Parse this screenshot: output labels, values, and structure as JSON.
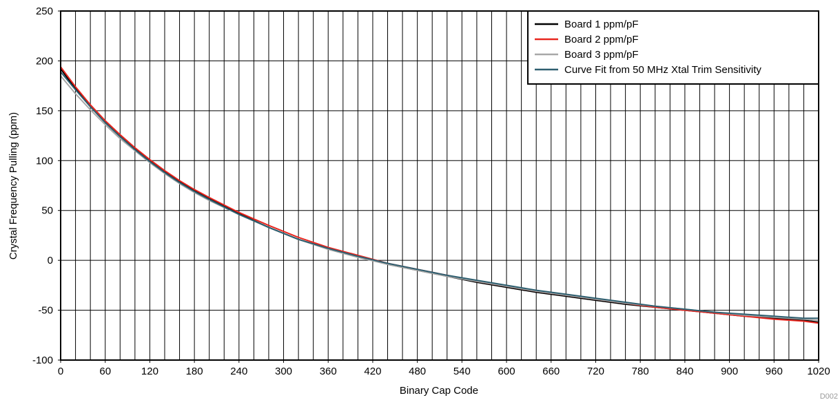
{
  "chart_data": {
    "type": "line",
    "title": "",
    "xlabel": "Binary Cap Code",
    "ylabel": "Crystal Frequency Pulling (ppm)",
    "xlim": [
      0,
      1020
    ],
    "ylim": [
      -100,
      250
    ],
    "xticks": [
      0,
      60,
      120,
      180,
      240,
      300,
      360,
      420,
      480,
      540,
      600,
      660,
      720,
      780,
      840,
      900,
      960,
      1020
    ],
    "yticks": [
      -100,
      -50,
      0,
      50,
      100,
      150,
      200,
      250
    ],
    "vertical_grid_step": 20,
    "grid": true,
    "legend_position": "top-right",
    "x": [
      0,
      20,
      40,
      60,
      80,
      100,
      120,
      140,
      160,
      180,
      200,
      240,
      280,
      320,
      360,
      400,
      440,
      480,
      520,
      560,
      600,
      640,
      680,
      720,
      760,
      800,
      840,
      880,
      920,
      960,
      1000,
      1020
    ],
    "series": [
      {
        "name": "Board 1 ppm/pF",
        "color": "#000000",
        "values": [
          192,
          172,
          155,
          139,
          125,
          112,
          100,
          89,
          79,
          70,
          62,
          47,
          33,
          21,
          12,
          4,
          -4,
          -10,
          -16,
          -22,
          -27,
          -32,
          -36,
          -40,
          -44,
          -47,
          -50,
          -53,
          -56,
          -58,
          -60,
          -62
        ]
      },
      {
        "name": "Board 2 ppm/pF",
        "color": "#e8261f",
        "values": [
          194,
          174,
          156,
          140,
          126,
          113,
          101,
          90,
          80,
          71,
          63,
          48,
          35,
          23,
          13,
          5,
          -3,
          -9,
          -15,
          -21,
          -26,
          -31,
          -35,
          -39,
          -43,
          -47,
          -50,
          -53,
          -56,
          -59,
          -61,
          -63
        ]
      },
      {
        "name": "Board 3 ppm/pF",
        "color": "#a8a8a8",
        "values": [
          185,
          167,
          151,
          136,
          122,
          110,
          98,
          87,
          77,
          68,
          60,
          46,
          33,
          21,
          11,
          3,
          -4,
          -10,
          -16,
          -21,
          -26,
          -31,
          -35,
          -39,
          -43,
          -46,
          -49,
          -52,
          -55,
          -57,
          -59,
          -60
        ]
      },
      {
        "name": "Curve Fit from 50 MHz Xtal Trim Sensitivity",
        "color": "#2e5f70",
        "values": [
          189,
          171,
          154,
          138,
          124,
          111,
          99,
          88,
          78,
          69,
          61,
          46,
          33,
          21,
          12,
          4,
          -3,
          -9,
          -15,
          -20,
          -25,
          -30,
          -34,
          -38,
          -42,
          -46,
          -49,
          -52,
          -54,
          -56,
          -58,
          -58
        ]
      }
    ]
  },
  "watermark": "D002"
}
